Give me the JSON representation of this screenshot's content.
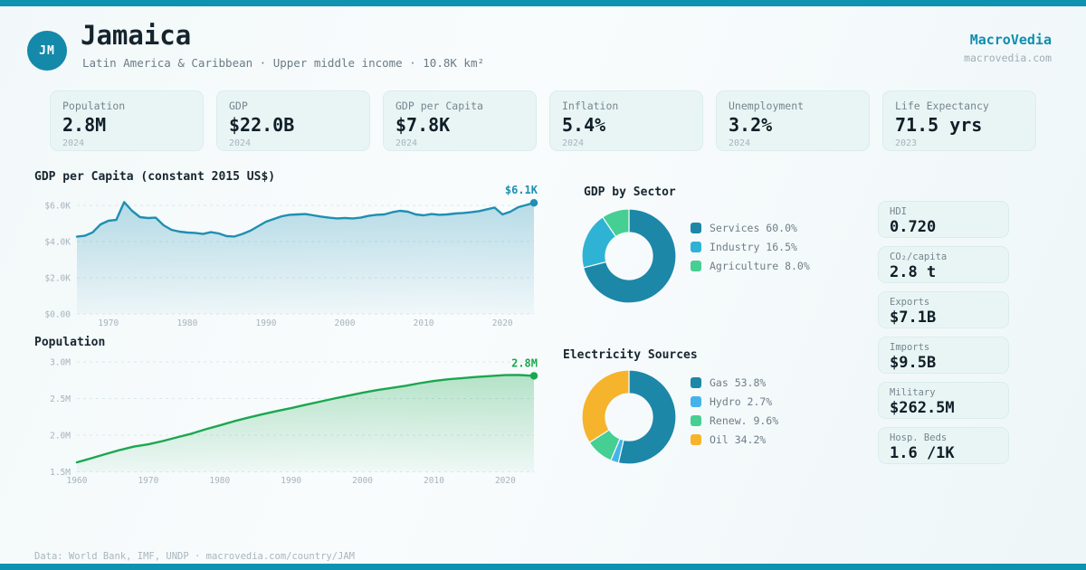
{
  "brand": {
    "name": "MacroVedia",
    "site": "macrovedia.com"
  },
  "header": {
    "badge": "JM",
    "title": "Jamaica",
    "subtitle": "Latin America & Caribbean · Upper middle income · 10.8K km²"
  },
  "stat_cards": [
    {
      "label": "Population",
      "value": "2.8M",
      "year": "2024"
    },
    {
      "label": "GDP",
      "value": "$22.0B",
      "year": "2024"
    },
    {
      "label": "GDP per Capita",
      "value": "$7.8K",
      "year": "2024"
    },
    {
      "label": "Inflation",
      "value": "5.4%",
      "year": "2024"
    },
    {
      "label": "Unemployment",
      "value": "3.2%",
      "year": "2024"
    },
    {
      "label": "Life Expectancy",
      "value": "71.5 yrs",
      "year": "2023"
    }
  ],
  "side_cards": [
    {
      "label": "HDI",
      "value": "0.720"
    },
    {
      "label": "CO₂/capita",
      "value": "2.8 t"
    },
    {
      "label": "Exports",
      "value": "$7.1B"
    },
    {
      "label": "Imports",
      "value": "$9.5B"
    },
    {
      "label": "Military",
      "value": "$262.5M"
    },
    {
      "label": "Hosp. Beds",
      "value": "1.6 /1K"
    }
  ],
  "footer": {
    "text": "Data: World Bank, IMF, UNDP · macrovedia.com/country/JAM"
  },
  "chart_data": [
    {
      "id": "gdpcap",
      "type": "area",
      "title": "GDP per Capita (constant 2015 US$)",
      "color": "#1f8fb2",
      "end_label": "$6.1K",
      "ylim": [
        0,
        6600
      ],
      "yticks": [
        {
          "v": 0,
          "label": "$0.00"
        },
        {
          "v": 2000,
          "label": "$2.0K"
        },
        {
          "v": 4000,
          "label": "$4.0K"
        },
        {
          "v": 6000,
          "label": "$6.0K"
        }
      ],
      "xticks": [
        1970,
        1980,
        1990,
        2000,
        2010,
        2020
      ],
      "grid": true,
      "x": [
        1966,
        1967,
        1968,
        1969,
        1970,
        1971,
        1972,
        1973,
        1974,
        1975,
        1976,
        1977,
        1978,
        1979,
        1980,
        1981,
        1982,
        1983,
        1984,
        1985,
        1986,
        1987,
        1988,
        1989,
        1990,
        1991,
        1992,
        1993,
        1994,
        1995,
        1996,
        1997,
        1998,
        1999,
        2000,
        2001,
        2002,
        2003,
        2004,
        2005,
        2006,
        2007,
        2008,
        2009,
        2010,
        2011,
        2012,
        2013,
        2014,
        2015,
        2016,
        2017,
        2018,
        2019,
        2020,
        2021,
        2022,
        2023,
        2024
      ],
      "values": [
        4270,
        4320,
        4510,
        4950,
        5150,
        5200,
        6180,
        5700,
        5350,
        5300,
        5320,
        4900,
        4650,
        4550,
        4500,
        4480,
        4420,
        4520,
        4450,
        4300,
        4280,
        4420,
        4600,
        4850,
        5100,
        5250,
        5400,
        5480,
        5500,
        5520,
        5450,
        5380,
        5320,
        5280,
        5300,
        5280,
        5320,
        5420,
        5480,
        5500,
        5620,
        5700,
        5650,
        5500,
        5450,
        5520,
        5480,
        5500,
        5550,
        5580,
        5620,
        5680,
        5780,
        5880,
        5500,
        5650,
        5900,
        6020,
        6140
      ]
    },
    {
      "id": "pop",
      "type": "area",
      "title": "Population",
      "color": "#1aa74f",
      "end_label": "2.8M",
      "ylim": [
        1500000,
        3050000
      ],
      "yticks": [
        {
          "v": 1500000,
          "label": "1.5M"
        },
        {
          "v": 2000000,
          "label": "2.0M"
        },
        {
          "v": 2500000,
          "label": "2.5M"
        },
        {
          "v": 3000000,
          "label": "3.0M"
        }
      ],
      "xticks": [
        1960,
        1970,
        1980,
        1990,
        2000,
        2010,
        2020
      ],
      "grid": true,
      "x": [
        1960,
        1962,
        1964,
        1966,
        1968,
        1970,
        1972,
        1974,
        1976,
        1978,
        1980,
        1982,
        1984,
        1986,
        1988,
        1990,
        1992,
        1994,
        1996,
        1998,
        2000,
        2002,
        2004,
        2006,
        2008,
        2010,
        2012,
        2014,
        2016,
        2018,
        2020,
        2022,
        2024
      ],
      "values": [
        1630000,
        1685000,
        1742000,
        1798000,
        1845000,
        1875000,
        1920000,
        1970000,
        2020000,
        2080000,
        2133000,
        2190000,
        2240000,
        2287000,
        2330000,
        2369000,
        2415000,
        2457000,
        2500000,
        2540000,
        2580000,
        2615000,
        2645000,
        2675000,
        2710000,
        2740000,
        2763000,
        2780000,
        2795000,
        2808000,
        2820000,
        2821000,
        2810000
      ]
    },
    {
      "id": "sector",
      "type": "pie",
      "title": "GDP by Sector",
      "legend_position": "right",
      "slices": [
        {
          "label": "Services",
          "pct": 60.0,
          "color": "#1d87a8",
          "text": "Services 60.0%"
        },
        {
          "label": "Industry",
          "pct": 16.5,
          "color": "#2fb3d4",
          "text": "Industry 16.5%"
        },
        {
          "label": "Agriculture",
          "pct": 8.0,
          "color": "#45cf92",
          "text": "Agriculture 8.0%"
        }
      ]
    },
    {
      "id": "electricity",
      "type": "pie",
      "title": "Electricity Sources",
      "legend_position": "right",
      "slices": [
        {
          "label": "Gas",
          "pct": 53.8,
          "color": "#1d87a8",
          "text": "Gas 53.8%"
        },
        {
          "label": "Hydro",
          "pct": 2.7,
          "color": "#45b3ea",
          "text": "Hydro 2.7%"
        },
        {
          "label": "Renew.",
          "pct": 9.6,
          "color": "#45cf92",
          "text": "Renew. 9.6%"
        },
        {
          "label": "Oil",
          "pct": 34.2,
          "color": "#f6b42d",
          "text": "Oil 34.2%"
        }
      ]
    }
  ]
}
